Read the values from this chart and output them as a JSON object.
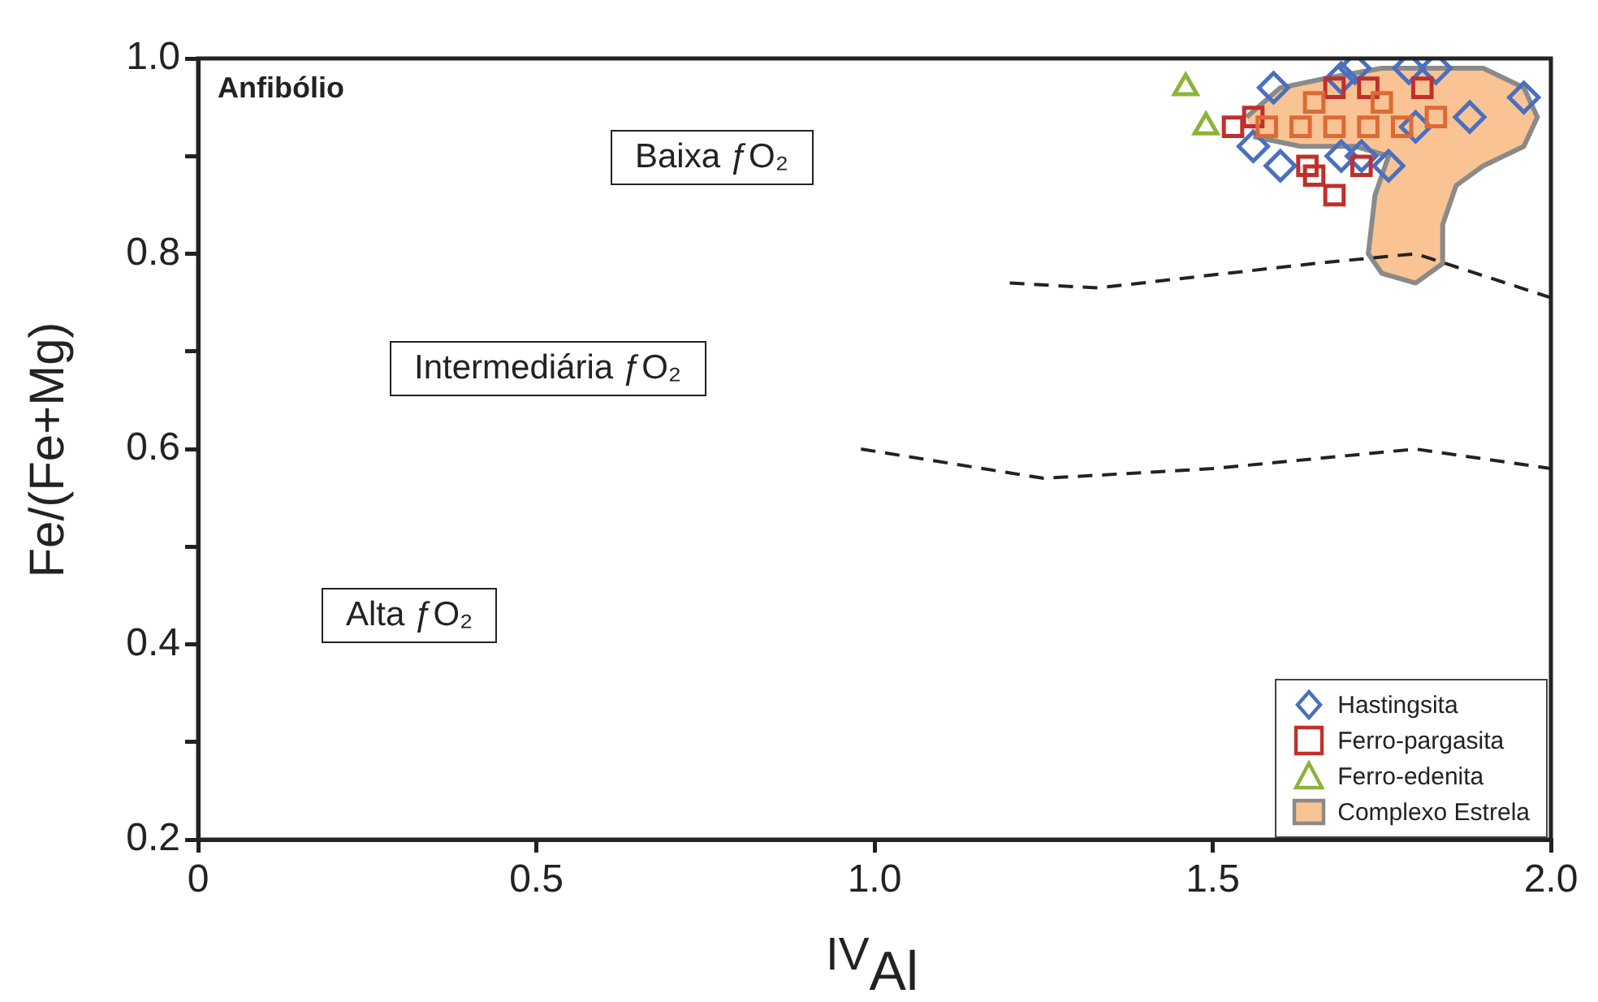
{
  "chart_data": {
    "type": "scatter",
    "title": "Anfibólio",
    "xlabel": "$^{IV}$Al",
    "ylabel": "Fe/(Fe+Mg)",
    "xlim": [
      0,
      2
    ],
    "xticks": [
      {
        "value": 0,
        "label": "0"
      },
      {
        "value": 0.5,
        "label": "0.5"
      },
      {
        "value": 1,
        "label": "1.0"
      },
      {
        "value": 1.5,
        "label": "1.5"
      },
      {
        "value": 2,
        "label": "2.0"
      }
    ],
    "ylim": [
      0.2,
      1
    ],
    "yticks": [
      {
        "value": 0.2,
        "label": "0.2"
      },
      {
        "value": 0.3,
        "label": null
      },
      {
        "value": 0.4,
        "label": "0.4"
      },
      {
        "value": 0.5,
        "label": null
      },
      {
        "value": 0.6,
        "label": "0.6"
      },
      {
        "value": 0.7,
        "label": null
      },
      {
        "value": 0.8,
        "label": "0.8"
      },
      {
        "value": 0.9,
        "label": null
      },
      {
        "value": 1,
        "label": "1.0"
      }
    ],
    "grid": false,
    "legend": "bottom right",
    "annotations": [
      "Baixa ƒO₂",
      "Intermediária ƒO₂",
      "Alta ƒO₂"
    ],
    "series": [
      {
        "name": "Complexo Estrela",
        "type": "area",
        "color": "#f9c393",
        "x": [
          1.55,
          1.6,
          1.67,
          1.75,
          1.84,
          1.9,
          1.96,
          1.98,
          1.96,
          1.9,
          1.86,
          1.84,
          1.84,
          1.8,
          1.75,
          1.73,
          1.74,
          1.76,
          1.71,
          1.63,
          1.56
        ],
        "values": [
          0.94,
          0.97,
          0.98,
          0.99,
          0.99,
          0.99,
          0.97,
          0.94,
          0.91,
          0.89,
          0.87,
          0.83,
          0.79,
          0.77,
          0.78,
          0.8,
          0.86,
          0.9,
          0.91,
          0.91,
          0.92
        ]
      },
      {
        "type": "line",
        "color": "#222222",
        "line_style": "dashed",
        "marker": "none",
        "x": [
          0.98,
          1.25,
          1.5,
          1.8,
          2.0
        ],
        "values": [
          0.6,
          0.57,
          0.58,
          0.6,
          0.58
        ]
      },
      {
        "type": "line",
        "color": "#222222",
        "line_style": "dashed",
        "marker": "none",
        "x": [
          1.2,
          1.33,
          1.65,
          1.8,
          2.0
        ],
        "values": [
          0.77,
          0.765,
          0.79,
          0.8,
          0.755
        ]
      },
      {
        "name": "Hastingsita",
        "marker": "diamond",
        "color": "#4a6fbf",
        "x": [
          1.71,
          1.79,
          1.83,
          1.96,
          1.88,
          1.8,
          1.76,
          1.72,
          1.69,
          1.6,
          1.56,
          1.59,
          1.69
        ],
        "values": [
          0.99,
          0.99,
          0.99,
          0.96,
          0.94,
          0.93,
          0.89,
          0.9,
          0.9,
          0.89,
          0.91,
          0.97,
          0.98
        ]
      },
      {
        "name": "Ferro-pargasita",
        "marker": "square",
        "color": "#c0302a",
        "x": [
          1.53,
          1.56,
          1.64,
          1.65,
          1.68,
          1.72,
          1.68,
          1.73,
          1.81
        ],
        "values": [
          0.93,
          0.94,
          0.89,
          0.88,
          0.86,
          0.89,
          0.97,
          0.97,
          0.97
        ]
      },
      {
        "marker": "square",
        "color": "#dd6a35",
        "x": [
          1.58,
          1.63,
          1.68,
          1.73,
          1.78,
          1.83,
          1.65,
          1.75
        ],
        "values": [
          0.93,
          0.93,
          0.93,
          0.93,
          0.93,
          0.94,
          0.955,
          0.955
        ]
      },
      {
        "name": "Ferro-edenita",
        "marker": "triangle",
        "color": "#8db33a",
        "x": [
          1.46,
          1.49
        ],
        "values": [
          0.97,
          0.93
        ]
      }
    ]
  }
}
